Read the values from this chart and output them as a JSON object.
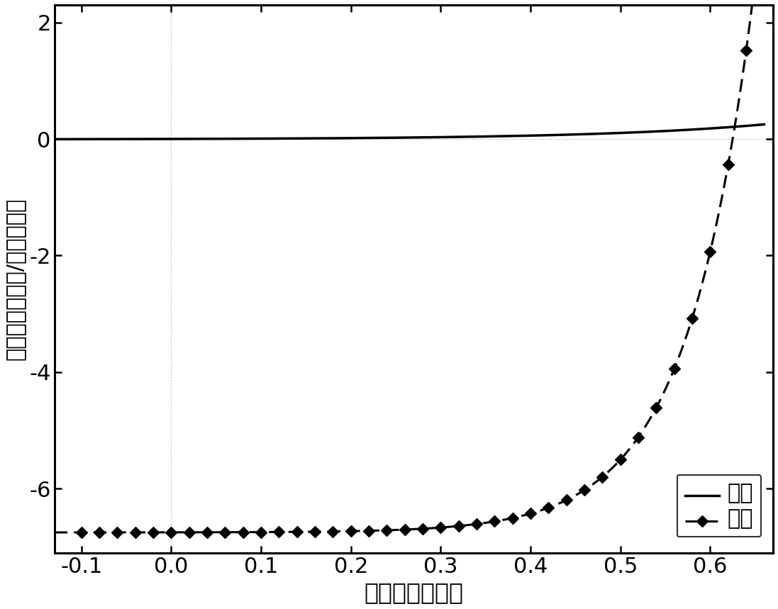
{
  "xlabel": "开路电压（伏）",
  "ylabel": "短路电流（毫安/平方厘米）",
  "xlim": [
    -0.13,
    0.67
  ],
  "ylim": [
    -7.1,
    2.3
  ],
  "xticks": [
    -0.1,
    0.0,
    0.1,
    0.2,
    0.3,
    0.4,
    0.5,
    0.6
  ],
  "yticks": [
    -6,
    -4,
    -2,
    0,
    2
  ],
  "dark_label": "暗态",
  "light_label": "光照",
  "background_color": "#ffffff",
  "line_color": "#000000",
  "grid_color": "#999999",
  "Jsc": -6.75,
  "Voc": 0.625,
  "q_nkT_light": 13.5,
  "J0_dark": 0.012,
  "nkT_dark": 0.182,
  "xlabel_fontsize": 24,
  "ylabel_fontsize": 22,
  "tick_fontsize": 22,
  "legend_fontsize": 22
}
